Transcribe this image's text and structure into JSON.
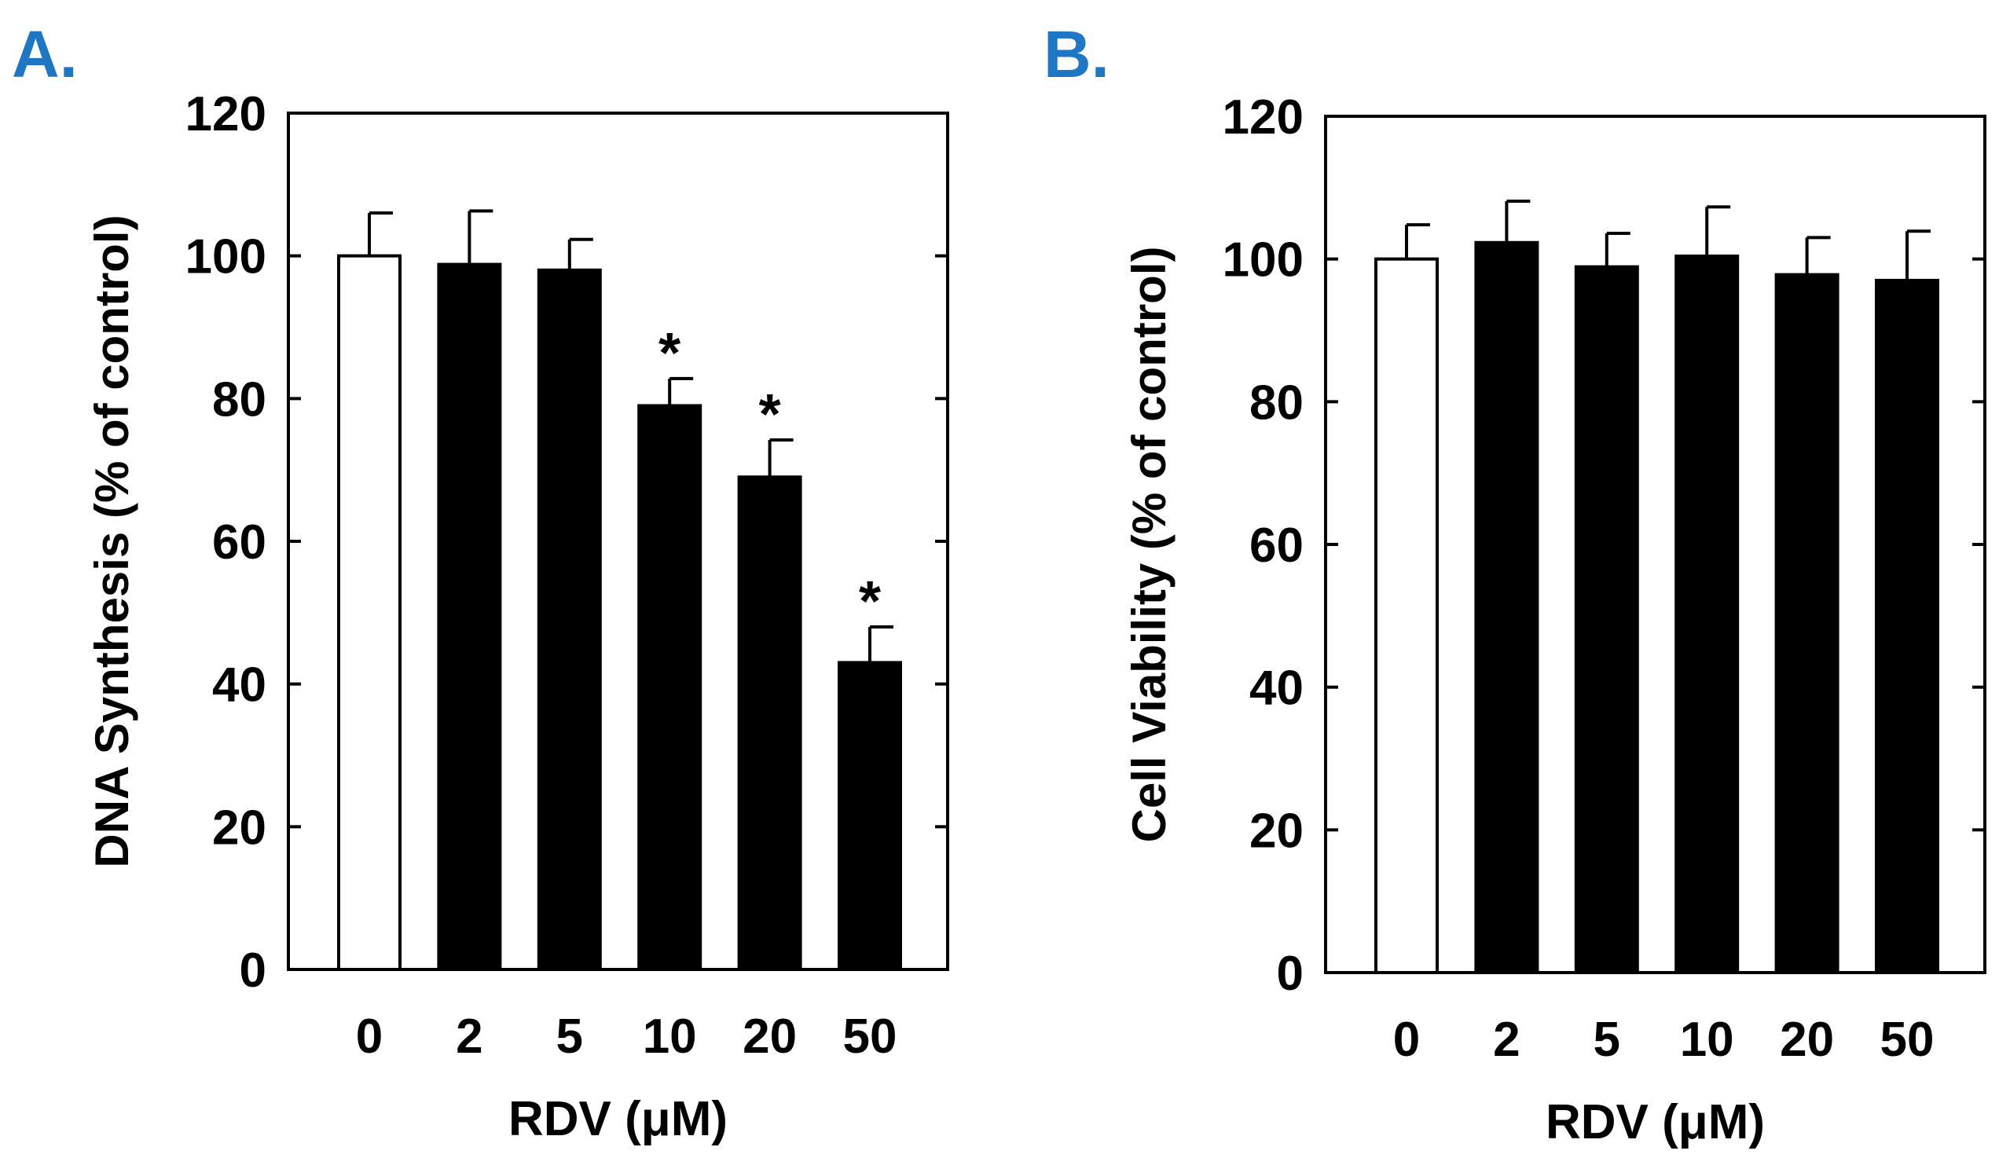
{
  "panels": [
    {
      "label": "A.",
      "label_color": "#1f77c4"
    },
    {
      "label": "B.",
      "label_color": "#1f77c4"
    }
  ],
  "colors": {
    "control_bar": "#ffffff",
    "treated_bar": "#000000",
    "axis": "#000000"
  },
  "chart_data": [
    {
      "type": "bar",
      "title": "",
      "panel": "A.",
      "xlabel": "RDV (μM)",
      "ylabel": "DNA Synthesis (% of control)",
      "categories": [
        "0",
        "2",
        "5",
        "10",
        "20",
        "50"
      ],
      "values": [
        100,
        98.8,
        98,
        79,
        69,
        43
      ],
      "errors": [
        6,
        7.5,
        4.3,
        3.8,
        5.2,
        5
      ],
      "significance": [
        "",
        "",
        "",
        "*",
        "*",
        "*"
      ],
      "bar_fill": [
        "white",
        "black",
        "black",
        "black",
        "black",
        "black"
      ],
      "ylim": [
        0,
        120
      ],
      "yticks": [
        0,
        20,
        40,
        60,
        80,
        100,
        120
      ]
    },
    {
      "type": "bar",
      "title": "",
      "panel": "B.",
      "xlabel": "RDV (μM)",
      "ylabel": "Cell Viability (% of control)",
      "categories": [
        "0",
        "2",
        "5",
        "10",
        "20",
        "50"
      ],
      "values": [
        100,
        102.3,
        98.9,
        100.4,
        97.8,
        97
      ],
      "errors": [
        4.8,
        5.8,
        4.7,
        6.9,
        5.2,
        6.9
      ],
      "significance": [
        "",
        "",
        "",
        "",
        "",
        ""
      ],
      "bar_fill": [
        "white",
        "black",
        "black",
        "black",
        "black",
        "black"
      ],
      "ylim": [
        0,
        120
      ],
      "yticks": [
        0,
        20,
        40,
        60,
        80,
        100,
        120
      ]
    }
  ]
}
